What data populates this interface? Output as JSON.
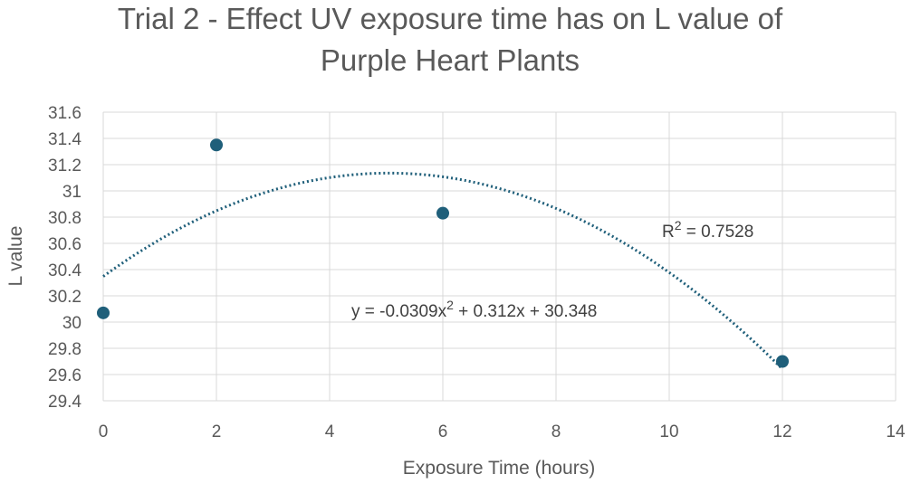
{
  "chart_data": {
    "type": "scatter",
    "title_lines": [
      "Trial 2 - Effect UV exposure time has on L value of",
      "Purple Heart Plants"
    ],
    "xlabel": "Exposure Time (hours)",
    "ylabel": "L value",
    "xlim": [
      0,
      14
    ],
    "ylim": [
      29.4,
      31.6
    ],
    "x_ticks": [
      0,
      2,
      4,
      6,
      8,
      10,
      12,
      14
    ],
    "y_ticks": [
      29.4,
      29.6,
      29.8,
      30,
      30.2,
      30.4,
      30.6,
      30.8,
      31,
      31.2,
      31.4,
      31.6
    ],
    "y_tick_labels": [
      "29.4",
      "29.6",
      "29.8",
      "30",
      "30.2",
      "30.4",
      "30.6",
      "30.8",
      "31",
      "31.2",
      "31.4",
      "31.6"
    ],
    "grid": true,
    "series": [
      {
        "x": [
          0,
          2,
          6,
          12
        ],
        "y": [
          30.07,
          31.35,
          30.83,
          29.7
        ],
        "color": "#1f5f7a"
      }
    ],
    "trendline": {
      "type": "polynomial",
      "order": 2,
      "coefficients": [
        -0.0309,
        0.312,
        30.348
      ],
      "x_range": [
        0,
        12
      ],
      "color": "#1f5f7a",
      "equation_label_main": "y = -0.0309x",
      "equation_label_sup": "2",
      "equation_label_rest": " + 0.312x + 30.348",
      "r2_label_main": "R",
      "r2_label_sup": "2",
      "r2_label_rest": " = 0.7528"
    }
  }
}
